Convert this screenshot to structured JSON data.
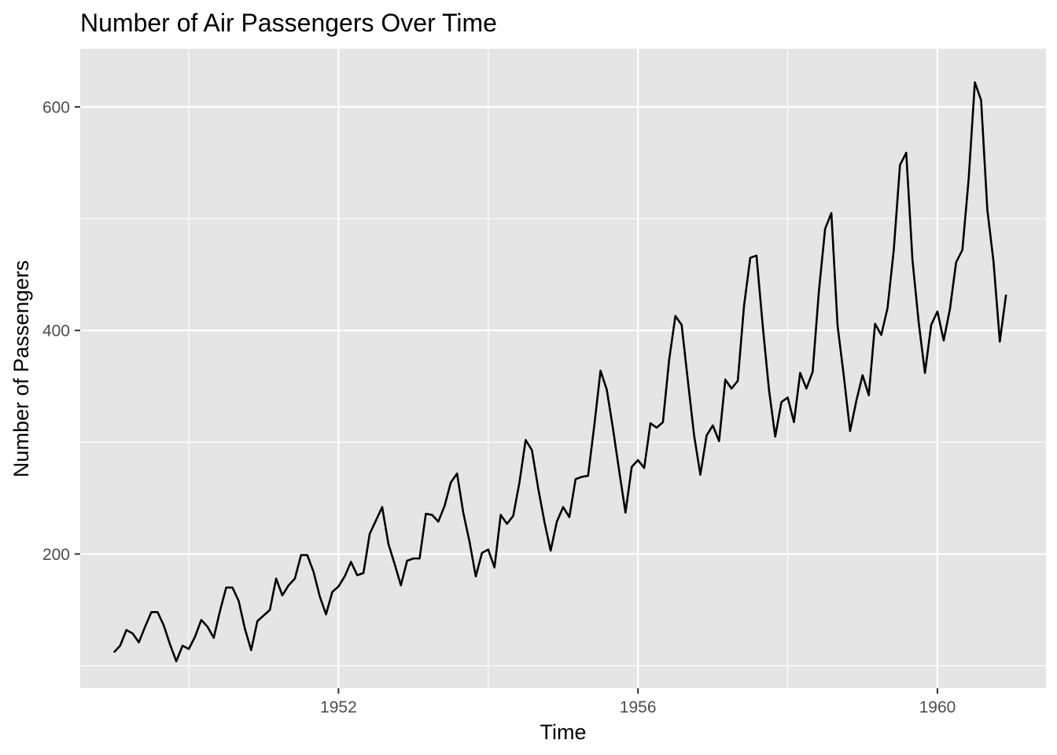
{
  "chart_data": {
    "type": "line",
    "title": "Number of Air Passengers Over Time",
    "xlabel": "Time",
    "ylabel": "Number of Passengers",
    "xlim": [
      1948.55,
      1961.45
    ],
    "ylim": [
      80,
      652
    ],
    "x_ticks": [
      1952,
      1956,
      1960
    ],
    "x_tick_labels": [
      "1952",
      "1956",
      "1960"
    ],
    "y_ticks": [
      200,
      400,
      600
    ],
    "y_tick_labels": [
      "200",
      "400",
      "600"
    ],
    "grid": true,
    "colors": {
      "panel": "#E5E5E5",
      "grid": "#FFFFFF",
      "line": "#000000"
    },
    "series": [
      {
        "x_start": 1949.0,
        "x_step": 0.083333,
        "values": [
          112,
          118,
          132,
          129,
          121,
          135,
          148,
          148,
          136,
          119,
          104,
          118,
          115,
          126,
          141,
          135,
          125,
          149,
          170,
          170,
          158,
          133,
          114,
          140,
          145,
          150,
          178,
          163,
          172,
          178,
          199,
          199,
          184,
          162,
          146,
          166,
          171,
          180,
          193,
          181,
          183,
          218,
          230,
          242,
          209,
          191,
          172,
          194,
          196,
          196,
          236,
          235,
          229,
          243,
          264,
          272,
          237,
          211,
          180,
          201,
          204,
          188,
          235,
          227,
          234,
          264,
          302,
          293,
          259,
          229,
          203,
          229,
          242,
          233,
          267,
          269,
          270,
          315,
          364,
          347,
          312,
          274,
          237,
          278,
          284,
          277,
          317,
          313,
          318,
          374,
          413,
          405,
          355,
          306,
          271,
          306,
          315,
          301,
          356,
          348,
          355,
          422,
          465,
          467,
          404,
          347,
          305,
          336,
          340,
          318,
          362,
          348,
          363,
          435,
          491,
          505,
          404,
          359,
          310,
          337,
          360,
          342,
          406,
          396,
          420,
          472,
          548,
          559,
          463,
          407,
          362,
          405,
          417,
          391,
          419,
          461,
          472,
          535,
          622,
          606,
          508,
          461,
          390,
          432
        ]
      }
    ]
  }
}
